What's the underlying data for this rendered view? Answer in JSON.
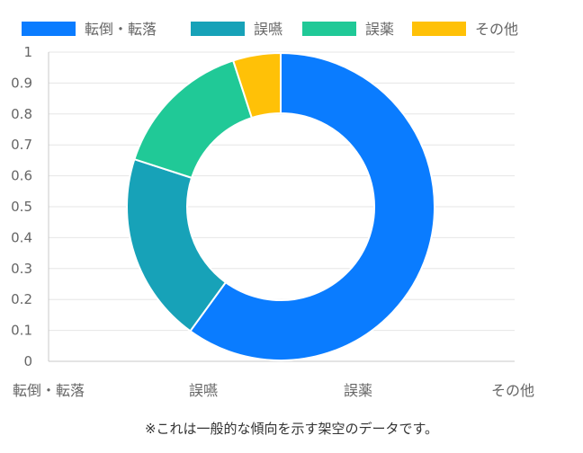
{
  "chart_data": {
    "type": "pie",
    "variant": "doughnut",
    "categories": [
      "転倒・転落",
      "誤嚥",
      "誤薬",
      "その他"
    ],
    "values": [
      60,
      20,
      15,
      5
    ],
    "colors": [
      "#0a7cff",
      "#17a2b8",
      "#20c997",
      "#ffc107"
    ],
    "legend_position": "top",
    "ytick_labels": [
      "0",
      "0.1",
      "0.2",
      "0.3",
      "0.4",
      "0.5",
      "0.6",
      "0.7",
      "0.8",
      "0.9",
      "1"
    ],
    "ylim": [
      0,
      1
    ],
    "grid": true
  },
  "footnote": "※これは一般的な傾向を示す架空のデータです。"
}
